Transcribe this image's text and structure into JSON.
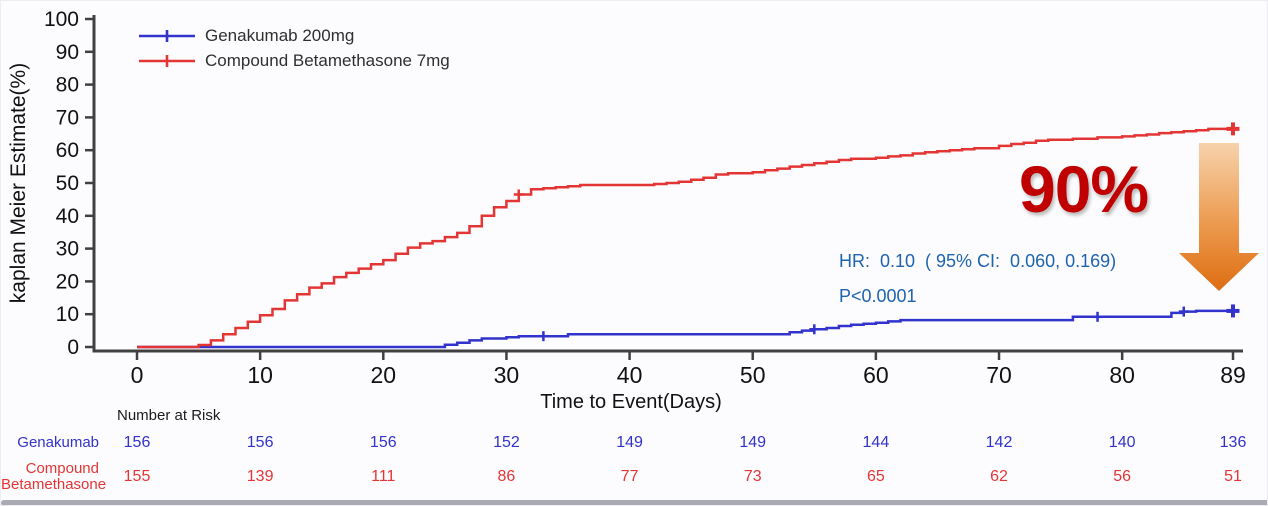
{
  "chart": {
    "annotation": {
      "hr_text": "HR:  0.10  ( 95% CI:  0.060, 0.169)",
      "p_text": "P<0.0001",
      "color": "#1d63ae"
    },
    "highlight": {
      "text": "90%",
      "color": "#c00000"
    },
    "arrow_icon": {
      "top_color": "#f7d2ab",
      "mid_color": "#ec9a4e",
      "bottom_color": "#dd6d12"
    },
    "axis_color": "#404040",
    "bottom_bar_color": "#a9aab3"
  },
  "chart_data": {
    "type": "line",
    "subtype": "kaplan-meier-step",
    "title": "",
    "xlabel": "Time to Event(Days)",
    "ylabel": "kaplan Meier Estimate(%)",
    "xlim": [
      0,
      89
    ],
    "ylim": [
      0,
      100
    ],
    "x_ticks": [
      0,
      10,
      20,
      30,
      40,
      50,
      60,
      70,
      80,
      89
    ],
    "y_ticks": [
      0,
      10,
      20,
      30,
      40,
      50,
      60,
      70,
      80,
      90,
      100
    ],
    "grid": false,
    "legend_position": "top-left",
    "series": [
      {
        "name": "Genakumab 200mg",
        "color": "#3232cc",
        "points": [
          [
            0,
            0
          ],
          [
            24,
            0
          ],
          [
            25,
            0.7
          ],
          [
            26,
            1.3
          ],
          [
            27,
            2
          ],
          [
            28,
            2.6
          ],
          [
            30,
            3
          ],
          [
            31,
            3.3
          ],
          [
            35,
            3.9
          ],
          [
            52,
            3.9
          ],
          [
            53,
            4.5
          ],
          [
            54,
            5
          ],
          [
            55,
            5.4
          ],
          [
            56,
            5.8
          ],
          [
            57,
            6.4
          ],
          [
            58,
            6.8
          ],
          [
            59,
            7.1
          ],
          [
            60,
            7.4
          ],
          [
            61,
            7.8
          ],
          [
            62,
            8.2
          ],
          [
            75,
            8.2
          ],
          [
            76,
            9.2
          ],
          [
            84,
            10.4
          ],
          [
            85,
            10.8
          ],
          [
            86,
            11
          ],
          [
            89,
            11
          ]
        ],
        "censor_marks": [
          [
            33,
            3.3
          ],
          [
            55,
            5.4
          ],
          [
            78,
            9.2
          ],
          [
            85,
            10.8
          ]
        ],
        "end_mark": [
          89,
          11
        ]
      },
      {
        "name": "Compound Betamethasone 7mg",
        "color": "#e43535",
        "points": [
          [
            0,
            0
          ],
          [
            4,
            0
          ],
          [
            5,
            0.6
          ],
          [
            6,
            2
          ],
          [
            7,
            3.9
          ],
          [
            8,
            5.8
          ],
          [
            9,
            7.7
          ],
          [
            10,
            9.7
          ],
          [
            11,
            11.6
          ],
          [
            12,
            14.2
          ],
          [
            13,
            16.1
          ],
          [
            14,
            18.1
          ],
          [
            15,
            19.4
          ],
          [
            16,
            21.3
          ],
          [
            17,
            22.6
          ],
          [
            18,
            23.9
          ],
          [
            19,
            25.2
          ],
          [
            20,
            26.5
          ],
          [
            21,
            28.4
          ],
          [
            22,
            30.3
          ],
          [
            23,
            31.6
          ],
          [
            24,
            32.3
          ],
          [
            25,
            33.5
          ],
          [
            26,
            34.8
          ],
          [
            27,
            36.8
          ],
          [
            28,
            40
          ],
          [
            29,
            42.6
          ],
          [
            30,
            44.5
          ],
          [
            31,
            46.5
          ],
          [
            32,
            48.1
          ],
          [
            33,
            48.4
          ],
          [
            34,
            48.7
          ],
          [
            35,
            49
          ],
          [
            36,
            49.4
          ],
          [
            42,
            49.7
          ],
          [
            43,
            50
          ],
          [
            44,
            50.4
          ],
          [
            45,
            51
          ],
          [
            46,
            51.6
          ],
          [
            47,
            52.6
          ],
          [
            48,
            53
          ],
          [
            50,
            53.3
          ],
          [
            51,
            53.9
          ],
          [
            52,
            54.4
          ],
          [
            53,
            55
          ],
          [
            54,
            55.5
          ],
          [
            55,
            56
          ],
          [
            56,
            56.5
          ],
          [
            57,
            57
          ],
          [
            58,
            57.4
          ],
          [
            60,
            57.7
          ],
          [
            61,
            58.1
          ],
          [
            62,
            58.4
          ],
          [
            63,
            59
          ],
          [
            64,
            59.4
          ],
          [
            65,
            59.7
          ],
          [
            66,
            60
          ],
          [
            67,
            60.3
          ],
          [
            68,
            60.6
          ],
          [
            70,
            61.3
          ],
          [
            71,
            61.9
          ],
          [
            72,
            62.3
          ],
          [
            73,
            62.9
          ],
          [
            74,
            63.2
          ],
          [
            76,
            63.5
          ],
          [
            78,
            63.9
          ],
          [
            80,
            64.2
          ],
          [
            81,
            64.5
          ],
          [
            82,
            64.8
          ],
          [
            83,
            65.2
          ],
          [
            84,
            65.5
          ],
          [
            85,
            65.8
          ],
          [
            86,
            66.1
          ],
          [
            87,
            66.5
          ],
          [
            89,
            66.5
          ]
        ],
        "censor_marks": [
          [
            31,
            46.5
          ]
        ],
        "end_mark": [
          89,
          66.5
        ]
      }
    ],
    "annotations": [
      "HR:  0.10  ( 95% CI:  0.060, 0.169)",
      "P<0.0001",
      "90%"
    ]
  },
  "risk_table": {
    "header": "Number at Risk",
    "time_points": [
      0,
      10,
      20,
      30,
      40,
      50,
      60,
      70,
      80,
      89
    ],
    "rows": [
      {
        "label": "Genakumab",
        "color": "#3232cc",
        "values": [
          "156",
          "156",
          "156",
          "152",
          "149",
          "149",
          "144",
          "142",
          "140",
          "136"
        ]
      },
      {
        "label": "Compound\nBetamethasone",
        "color": "#e43535",
        "values": [
          "155",
          "139",
          "111",
          "86",
          "77",
          "73",
          "65",
          "62",
          "56",
          "51"
        ]
      }
    ]
  }
}
